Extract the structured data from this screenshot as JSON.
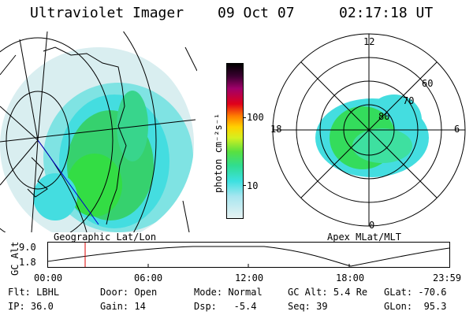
{
  "header": {
    "instrument": "Ultraviolet Imager",
    "date": "09 Oct 07",
    "time": "02:17:18 UT"
  },
  "colorbar": {
    "unit_label": "photon cm⁻²s⁻¹",
    "ticks": [
      "100",
      "10"
    ]
  },
  "polar_plot": {
    "mlt_labels": {
      "top": "12",
      "left": "18",
      "right": "6",
      "bottom": "0"
    },
    "lat_labels": [
      "60",
      "70",
      "80"
    ]
  },
  "map_captions": {
    "left": "Geographic Lat/Lon",
    "right": "Apex MLat/MLT"
  },
  "altitude_plot": {
    "axis_title": "GC Alt",
    "ticks": [
      "9.0",
      "1.8"
    ],
    "time_labels": [
      "00:00",
      "06:00",
      "12:00",
      "18:00",
      "23:59"
    ]
  },
  "info": {
    "row1": [
      {
        "label": "Flt:",
        "value": "LBHL"
      },
      {
        "label": "Door:",
        "value": "Open"
      },
      {
        "label": "Mode:",
        "value": "Normal"
      },
      {
        "label": "GC Alt:",
        "value": "5.4 Re"
      },
      {
        "label": "GLat:",
        "value": "-70.6"
      }
    ],
    "row2": [
      {
        "label": "IP:",
        "value": "36.0"
      },
      {
        "label": "Gain:",
        "value": "14"
      },
      {
        "label": "Dsp:",
        "value": "-5.4"
      },
      {
        "label": "Seq:",
        "value": "39"
      },
      {
        "label": "GLon:",
        "value": "95.3"
      }
    ]
  },
  "colors": {
    "aurora_green": "#33dd44",
    "aurora_cyan": "#44dde0",
    "glow_light": "#d6eef0",
    "marker_red": "#dd0000",
    "track_blue": "#0000cc"
  }
}
